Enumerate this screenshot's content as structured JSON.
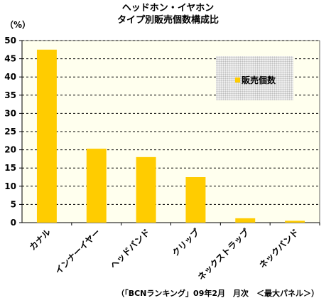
{
  "chart_data": {
    "type": "bar",
    "title": "ヘッドホン・イヤホン",
    "subtitle": "タイプ別販売個数構成比",
    "ylabel": "（%）",
    "categories": [
      "カナル",
      "インナーイヤー",
      "ヘッドバンド",
      "クリップ",
      "ネックストラップ",
      "ネックバンド"
    ],
    "series": [
      {
        "name": "販売個数",
        "values": [
          47.5,
          20.3,
          18.0,
          12.5,
          1.2,
          0.5
        ],
        "color": "#ffcc00"
      }
    ],
    "yticks": [
      0,
      5,
      10,
      15,
      20,
      25,
      30,
      35,
      40,
      45,
      50
    ],
    "ylim": [
      0,
      50
    ],
    "grid": true,
    "legend_position": "top-right",
    "plot_background": "#ffffee",
    "source": "（「BCNランキング」09年2月　月次　＜最大パネル＞）"
  }
}
